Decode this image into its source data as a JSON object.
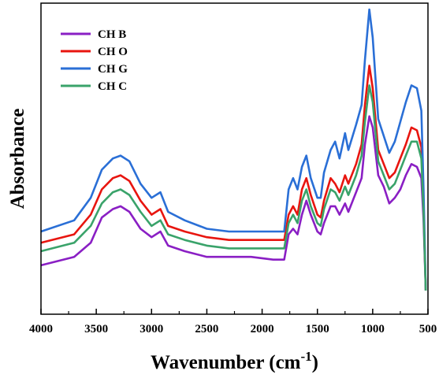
{
  "chart_data": {
    "type": "line",
    "xlabel": "Wavenumber (cm",
    "xlabel_sup": "-1",
    "xlabel_close": ")",
    "ylabel": "Absorbance",
    "xlim": [
      4000,
      500
    ],
    "ylim": [
      0,
      1
    ],
    "x_reversed": true,
    "y_ticks_shown": false,
    "grid": false,
    "legend_position": "top-left",
    "x_ticks": [
      4000,
      3500,
      3000,
      2500,
      2000,
      1500,
      1000,
      500
    ],
    "series": [
      {
        "name": "CH B",
        "color": "#8a1fc4",
        "points": [
          [
            4000,
            0.09
          ],
          [
            3700,
            0.12
          ],
          [
            3550,
            0.17
          ],
          [
            3450,
            0.26
          ],
          [
            3350,
            0.29
          ],
          [
            3280,
            0.3
          ],
          [
            3200,
            0.28
          ],
          [
            3100,
            0.22
          ],
          [
            3000,
            0.19
          ],
          [
            2920,
            0.21
          ],
          [
            2850,
            0.16
          ],
          [
            2700,
            0.14
          ],
          [
            2500,
            0.12
          ],
          [
            2300,
            0.12
          ],
          [
            2100,
            0.12
          ],
          [
            1900,
            0.11
          ],
          [
            1800,
            0.11
          ],
          [
            1760,
            0.2
          ],
          [
            1720,
            0.22
          ],
          [
            1680,
            0.2
          ],
          [
            1640,
            0.27
          ],
          [
            1600,
            0.32
          ],
          [
            1560,
            0.27
          ],
          [
            1500,
            0.21
          ],
          [
            1470,
            0.2
          ],
          [
            1440,
            0.24
          ],
          [
            1380,
            0.3
          ],
          [
            1340,
            0.3
          ],
          [
            1300,
            0.27
          ],
          [
            1250,
            0.31
          ],
          [
            1220,
            0.28
          ],
          [
            1150,
            0.35
          ],
          [
            1100,
            0.4
          ],
          [
            1070,
            0.52
          ],
          [
            1030,
            0.62
          ],
          [
            1000,
            0.58
          ],
          [
            950,
            0.41
          ],
          [
            900,
            0.37
          ],
          [
            850,
            0.31
          ],
          [
            800,
            0.33
          ],
          [
            750,
            0.36
          ],
          [
            700,
            0.41
          ],
          [
            650,
            0.45
          ],
          [
            600,
            0.44
          ],
          [
            560,
            0.4
          ],
          [
            540,
            0.25
          ],
          [
            520,
            0.0
          ]
        ]
      },
      {
        "name": "CH O",
        "color": "#e8150f",
        "points": [
          [
            4000,
            0.17
          ],
          [
            3700,
            0.2
          ],
          [
            3550,
            0.27
          ],
          [
            3450,
            0.36
          ],
          [
            3350,
            0.4
          ],
          [
            3280,
            0.41
          ],
          [
            3200,
            0.39
          ],
          [
            3100,
            0.32
          ],
          [
            3000,
            0.27
          ],
          [
            2920,
            0.29
          ],
          [
            2850,
            0.23
          ],
          [
            2700,
            0.21
          ],
          [
            2500,
            0.19
          ],
          [
            2300,
            0.18
          ],
          [
            2100,
            0.18
          ],
          [
            1900,
            0.18
          ],
          [
            1800,
            0.18
          ],
          [
            1760,
            0.27
          ],
          [
            1720,
            0.3
          ],
          [
            1680,
            0.27
          ],
          [
            1640,
            0.36
          ],
          [
            1600,
            0.4
          ],
          [
            1560,
            0.34
          ],
          [
            1500,
            0.27
          ],
          [
            1470,
            0.26
          ],
          [
            1440,
            0.32
          ],
          [
            1380,
            0.4
          ],
          [
            1340,
            0.38
          ],
          [
            1300,
            0.35
          ],
          [
            1250,
            0.41
          ],
          [
            1220,
            0.38
          ],
          [
            1150,
            0.45
          ],
          [
            1100,
            0.52
          ],
          [
            1070,
            0.66
          ],
          [
            1030,
            0.8
          ],
          [
            1000,
            0.72
          ],
          [
            950,
            0.5
          ],
          [
            900,
            0.45
          ],
          [
            850,
            0.4
          ],
          [
            800,
            0.42
          ],
          [
            750,
            0.47
          ],
          [
            700,
            0.52
          ],
          [
            650,
            0.58
          ],
          [
            600,
            0.57
          ],
          [
            560,
            0.51
          ],
          [
            540,
            0.3
          ],
          [
            520,
            0.0
          ]
        ]
      },
      {
        "name": "CH G",
        "color": "#2a6fd6",
        "points": [
          [
            4000,
            0.21
          ],
          [
            3700,
            0.25
          ],
          [
            3550,
            0.33
          ],
          [
            3450,
            0.43
          ],
          [
            3350,
            0.47
          ],
          [
            3280,
            0.48
          ],
          [
            3200,
            0.46
          ],
          [
            3100,
            0.38
          ],
          [
            3000,
            0.33
          ],
          [
            2920,
            0.35
          ],
          [
            2850,
            0.28
          ],
          [
            2700,
            0.25
          ],
          [
            2500,
            0.22
          ],
          [
            2300,
            0.21
          ],
          [
            2100,
            0.21
          ],
          [
            1900,
            0.21
          ],
          [
            1800,
            0.21
          ],
          [
            1760,
            0.36
          ],
          [
            1720,
            0.4
          ],
          [
            1680,
            0.36
          ],
          [
            1640,
            0.44
          ],
          [
            1600,
            0.48
          ],
          [
            1560,
            0.4
          ],
          [
            1500,
            0.33
          ],
          [
            1470,
            0.33
          ],
          [
            1440,
            0.42
          ],
          [
            1380,
            0.5
          ],
          [
            1340,
            0.53
          ],
          [
            1300,
            0.47
          ],
          [
            1250,
            0.56
          ],
          [
            1220,
            0.5
          ],
          [
            1150,
            0.59
          ],
          [
            1100,
            0.66
          ],
          [
            1070,
            0.82
          ],
          [
            1030,
            1.0
          ],
          [
            1000,
            0.9
          ],
          [
            950,
            0.61
          ],
          [
            900,
            0.55
          ],
          [
            850,
            0.49
          ],
          [
            800,
            0.53
          ],
          [
            750,
            0.6
          ],
          [
            700,
            0.67
          ],
          [
            650,
            0.73
          ],
          [
            600,
            0.72
          ],
          [
            560,
            0.64
          ],
          [
            540,
            0.36
          ],
          [
            520,
            0.0
          ]
        ]
      },
      {
        "name": "CH C",
        "color": "#3aa36a",
        "points": [
          [
            4000,
            0.14
          ],
          [
            3700,
            0.17
          ],
          [
            3550,
            0.23
          ],
          [
            3450,
            0.31
          ],
          [
            3350,
            0.35
          ],
          [
            3280,
            0.36
          ],
          [
            3200,
            0.34
          ],
          [
            3100,
            0.28
          ],
          [
            3000,
            0.23
          ],
          [
            2920,
            0.25
          ],
          [
            2850,
            0.2
          ],
          [
            2700,
            0.18
          ],
          [
            2500,
            0.16
          ],
          [
            2300,
            0.15
          ],
          [
            2100,
            0.15
          ],
          [
            1900,
            0.15
          ],
          [
            1800,
            0.15
          ],
          [
            1760,
            0.24
          ],
          [
            1720,
            0.27
          ],
          [
            1680,
            0.24
          ],
          [
            1640,
            0.32
          ],
          [
            1600,
            0.36
          ],
          [
            1560,
            0.3
          ],
          [
            1500,
            0.24
          ],
          [
            1470,
            0.23
          ],
          [
            1440,
            0.29
          ],
          [
            1380,
            0.36
          ],
          [
            1340,
            0.35
          ],
          [
            1300,
            0.32
          ],
          [
            1250,
            0.37
          ],
          [
            1220,
            0.34
          ],
          [
            1150,
            0.41
          ],
          [
            1100,
            0.48
          ],
          [
            1070,
            0.6
          ],
          [
            1030,
            0.73
          ],
          [
            1000,
            0.67
          ],
          [
            950,
            0.46
          ],
          [
            900,
            0.41
          ],
          [
            850,
            0.36
          ],
          [
            800,
            0.38
          ],
          [
            750,
            0.43
          ],
          [
            700,
            0.48
          ],
          [
            650,
            0.53
          ],
          [
            600,
            0.53
          ],
          [
            560,
            0.47
          ],
          [
            540,
            0.28
          ],
          [
            520,
            0.0
          ]
        ]
      }
    ]
  }
}
